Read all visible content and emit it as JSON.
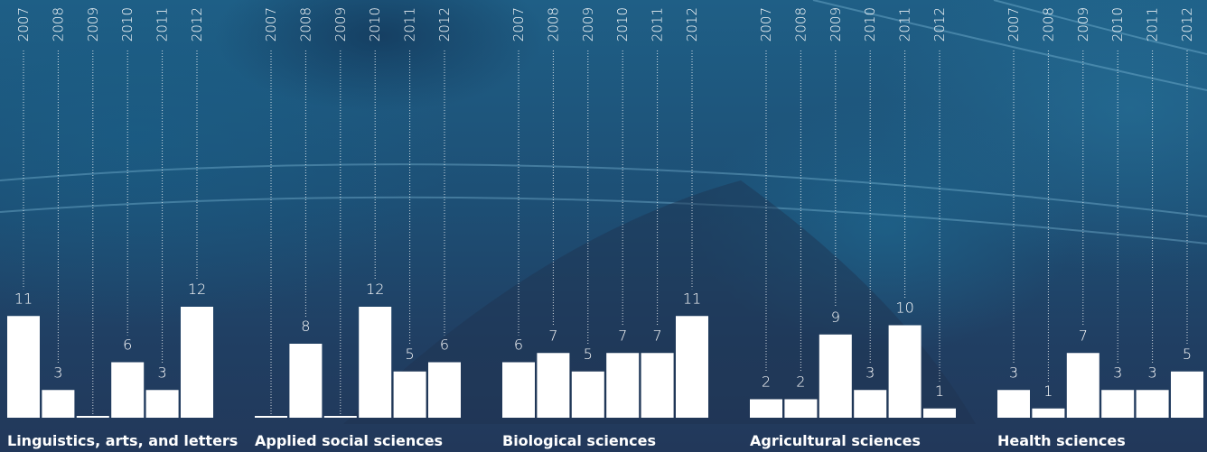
{
  "chart_data": [
    {
      "type": "bar",
      "title": "Linguistics, arts, and letters",
      "categories": [
        "2007",
        "2008",
        "2009",
        "2010",
        "2011",
        "2012"
      ],
      "values": [
        11,
        3,
        0,
        6,
        3,
        12
      ]
    },
    {
      "type": "bar",
      "title": "Applied social sciences",
      "categories": [
        "2007",
        "2008",
        "2009",
        "2010",
        "2011",
        "2012"
      ],
      "values": [
        0,
        8,
        0,
        12,
        5,
        6
      ]
    },
    {
      "type": "bar",
      "title": "Biological sciences",
      "categories": [
        "2007",
        "2008",
        "2009",
        "2010",
        "2011",
        "2012"
      ],
      "values": [
        6,
        7,
        5,
        7,
        7,
        11
      ]
    },
    {
      "type": "bar",
      "title": "Agricultural sciences",
      "categories": [
        "2007",
        "2008",
        "2009",
        "2010",
        "2011",
        "2012"
      ],
      "values": [
        2,
        2,
        9,
        3,
        10,
        1
      ]
    },
    {
      "type": "bar",
      "title": "Health sciences",
      "categories": [
        "2007",
        "2008",
        "2009",
        "2010",
        "2011",
        "2012"
      ],
      "values": [
        3,
        1,
        7,
        3,
        3,
        5
      ]
    }
  ]
}
